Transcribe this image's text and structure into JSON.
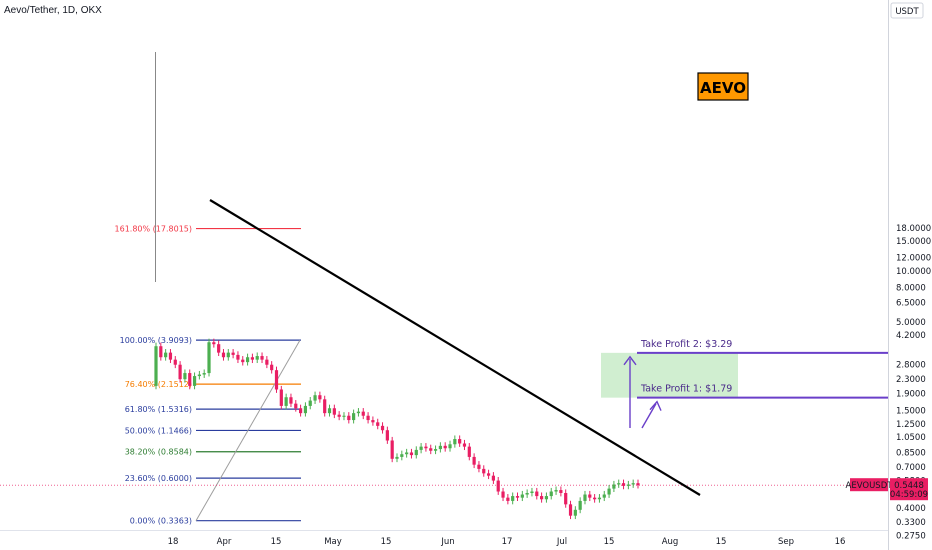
{
  "header": {
    "title": "Aevo/Tether, 1D, OKX"
  },
  "chart_data": {
    "type": "candlestick",
    "symbol": "AEVOUSDT",
    "currency_label": "USDT",
    "y_scale": "log",
    "y_ticks": [
      "18.0000",
      "15.0000",
      "12.0000",
      "10.0000",
      "8.0000",
      "6.5000",
      "5.0000",
      "4.2000",
      "2.8000",
      "2.3000",
      "1.9000",
      "1.5000",
      "1.2500",
      "1.0500",
      "0.8500",
      "0.7000",
      "0.5800",
      "0.4000",
      "0.3300",
      "0.2750"
    ],
    "x_ticks": [
      "18",
      "Apr",
      "15",
      "May",
      "15",
      "Jun",
      "17",
      "Jul",
      "15",
      "Aug",
      "15",
      "Sep",
      "16"
    ],
    "last_price": {
      "label": "0.5448",
      "countdown": "04:59:09",
      "value": 0.5448,
      "color": "#e91e63"
    },
    "fib_levels": [
      {
        "label": "161.80% (17.8015)",
        "value": 17.8015,
        "color": "#f23645"
      },
      {
        "label": "100.00% (3.9093)",
        "value": 3.9093,
        "color": "#2a3d9e"
      },
      {
        "label": "76.40% (2.1512)",
        "value": 2.1512,
        "color": "#f57c00"
      },
      {
        "label": "61.80% (1.5316)",
        "value": 1.5316,
        "color": "#2a3d9e"
      },
      {
        "label": "50.00% (1.1466)",
        "value": 1.1466,
        "color": "#2a3d9e"
      },
      {
        "label": "38.20% (0.8584)",
        "value": 0.8584,
        "color": "#2e7d32"
      },
      {
        "label": "23.60% (0.6000)",
        "value": 0.6,
        "color": "#2a3d9e"
      },
      {
        "label": "0.00% (0.3363)",
        "value": 0.3363,
        "color": "#2a3d9e"
      }
    ],
    "take_profits": [
      {
        "label": "Take Profit 2: $3.29",
        "price_label": "3.2900",
        "value": 3.29
      },
      {
        "label": "Take Profit 1: $1.79",
        "price_label": "1.7900",
        "value": 1.79
      }
    ],
    "badge": {
      "text": "AEVO"
    },
    "colors": {
      "up": "#4caf50",
      "down": "#e91e63",
      "trend": "#000000",
      "tp": "#6a3fc9",
      "zone": "#c8ebc8"
    },
    "candles_close": [
      3.6,
      3.1,
      3.3,
      3.0,
      2.8,
      2.3,
      2.5,
      2.1,
      2.4,
      2.45,
      2.5,
      3.8,
      3.7,
      3.3,
      3.1,
      3.3,
      3.2,
      3.0,
      2.9,
      3.1,
      3.0,
      3.15,
      3.0,
      2.8,
      2.6,
      2.0,
      1.6,
      1.8,
      1.65,
      1.55,
      1.45,
      1.6,
      1.72,
      1.85,
      1.75,
      1.45,
      1.55,
      1.42,
      1.38,
      1.4,
      1.32,
      1.45,
      1.48,
      1.4,
      1.32,
      1.28,
      1.22,
      1.15,
      1.0,
      0.78,
      0.8,
      0.83,
      0.85,
      0.82,
      0.88,
      0.92,
      0.9,
      0.87,
      0.89,
      0.93,
      0.9,
      0.95,
      1.02,
      0.96,
      0.92,
      0.8,
      0.72,
      0.68,
      0.64,
      0.62,
      0.58,
      0.5,
      0.46,
      0.44,
      0.47,
      0.46,
      0.48,
      0.49,
      0.5,
      0.47,
      0.45,
      0.47,
      0.5,
      0.51,
      0.49,
      0.42,
      0.36,
      0.39,
      0.44,
      0.48,
      0.46,
      0.45,
      0.46,
      0.48,
      0.52,
      0.55,
      0.56,
      0.54,
      0.55,
      0.56,
      0.545
    ]
  }
}
